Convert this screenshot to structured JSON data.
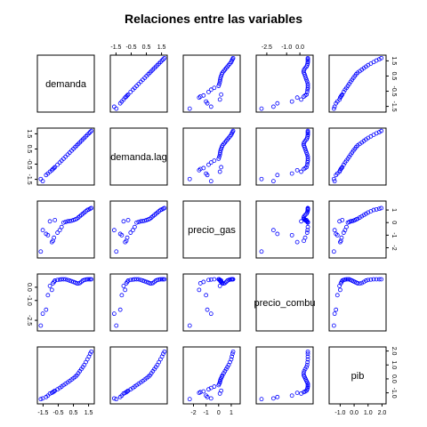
{
  "chart_data": {
    "type": "scatter-matrix",
    "title": "Relaciones entre las variables",
    "variables": [
      "demanda",
      "demanda.lag",
      "precio_gas",
      "precio_combu",
      "pib"
    ],
    "ranges": [
      [
        -1.7,
        1.7
      ],
      [
        -1.7,
        1.7
      ],
      [
        -2.6,
        1.5
      ],
      [
        -3.1,
        0.8
      ],
      [
        -1.6,
        2.1
      ]
    ],
    "ticks": [
      [
        "-1.5",
        "-0.5",
        "0.5",
        "1.5"
      ],
      [
        "-1.5",
        "-0.5",
        "0.5",
        "1.5"
      ],
      [
        "-2",
        "-1",
        "0",
        "1"
      ],
      [
        "-2.5",
        "-1.0",
        "0.0"
      ],
      [
        "-1.0",
        "0.0",
        "1.0",
        "2.0"
      ]
    ],
    "observations": {
      "demanda": [
        -1.65,
        -1.52,
        -1.3,
        -1.18,
        -1.05,
        -0.92,
        -0.85,
        -0.78,
        -0.72,
        -0.55,
        -0.4,
        -0.28,
        -0.15,
        -0.02,
        0.12,
        0.25,
        0.38,
        0.5,
        0.62,
        0.72,
        0.82,
        0.92,
        1.02,
        1.12,
        1.22,
        1.32,
        1.42,
        1.52,
        1.6,
        1.68
      ],
      "demanda.lag": [
        -1.48,
        -1.62,
        -1.22,
        -1.12,
        -1.0,
        -0.9,
        -0.82,
        -0.76,
        -0.7,
        -0.54,
        -0.39,
        -0.27,
        -0.14,
        -0.01,
        0.13,
        0.26,
        0.39,
        0.51,
        0.63,
        0.73,
        0.83,
        0.93,
        1.03,
        1.13,
        1.23,
        1.33,
        1.43,
        1.53,
        1.61,
        1.69
      ],
      "precio_gas": [
        -2.3,
        -0.6,
        -0.9,
        -1.0,
        0.1,
        -1.55,
        -1.45,
        -1.2,
        0.2,
        -0.8,
        -0.6,
        -0.35,
        0.0,
        0.05,
        0.1,
        0.12,
        0.15,
        0.2,
        0.25,
        0.3,
        0.4,
        0.5,
        0.6,
        0.7,
        0.8,
        0.9,
        1.0,
        1.05,
        1.1,
        1.15
      ],
      "precio_combu": [
        -2.9,
        -2.0,
        -1.7,
        -0.6,
        0.1,
        -0.2,
        0.3,
        0.4,
        0.5,
        0.55,
        0.58,
        0.6,
        0.6,
        0.6,
        0.55,
        0.5,
        0.45,
        0.4,
        0.35,
        0.3,
        0.28,
        0.32,
        0.4,
        0.5,
        0.55,
        0.58,
        0.6,
        0.6,
        0.6,
        0.6
      ],
      "pib": [
        -1.45,
        -1.4,
        -1.3,
        -1.2,
        -1.05,
        -1.0,
        -0.95,
        -0.9,
        -0.85,
        -0.75,
        -0.65,
        -0.55,
        -0.45,
        -0.35,
        -0.25,
        -0.15,
        -0.05,
        0.05,
        0.15,
        0.25,
        0.4,
        0.55,
        0.7,
        0.85,
        1.0,
        1.2,
        1.4,
        1.6,
        1.8,
        1.95
      ]
    }
  }
}
